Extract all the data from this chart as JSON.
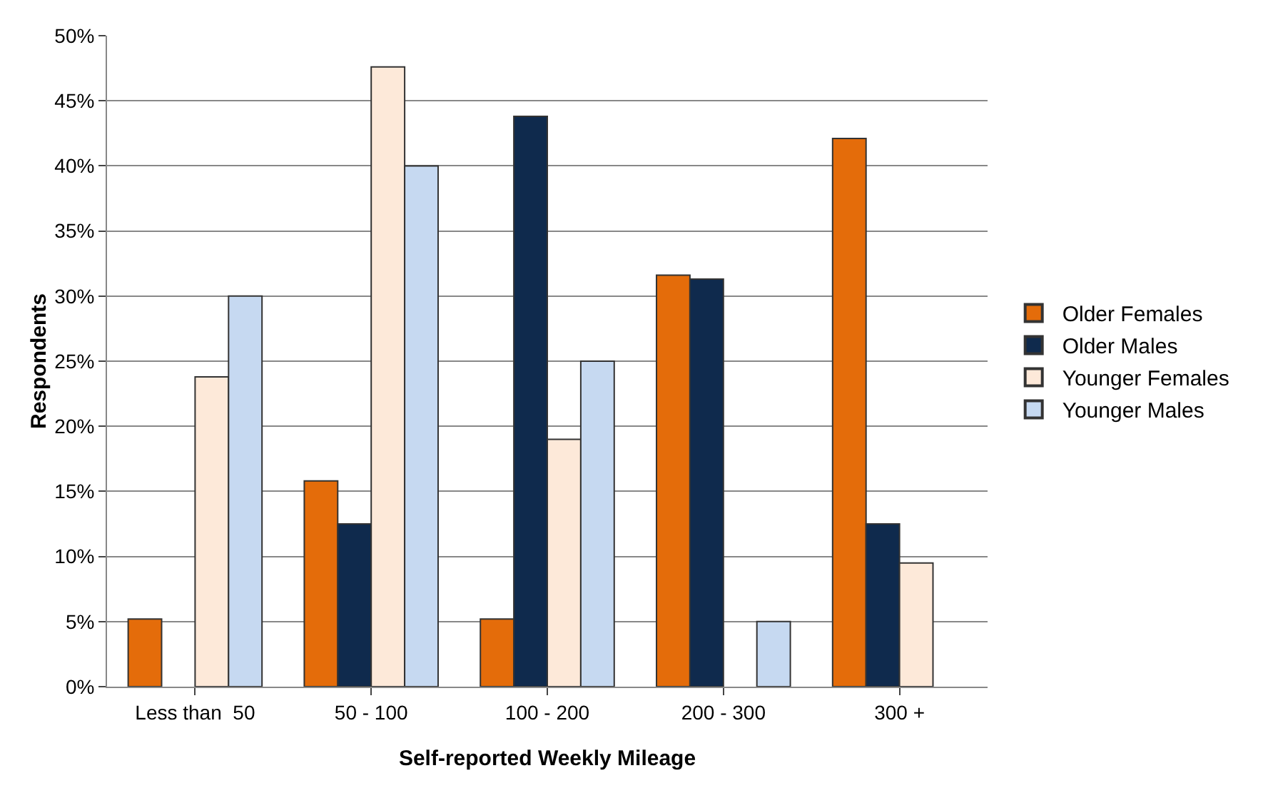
{
  "chart_data": {
    "type": "bar",
    "xlabel": "Self-reported Weekly Mileage",
    "ylabel": "Respondents",
    "categories": [
      "Less than  50",
      "50 - 100",
      "100 - 200",
      "200 - 300",
      "300 +"
    ],
    "series": [
      {
        "name": "Older Females",
        "color": "#e46c0a",
        "values": [
          5.2,
          15.8,
          5.2,
          31.6,
          42.1
        ]
      },
      {
        "name": "Older Males",
        "color": "#0f2a4d",
        "values": [
          0,
          12.5,
          43.8,
          31.3,
          12.5
        ]
      },
      {
        "name": "Younger Females",
        "color": "#fde9d9",
        "values": [
          23.8,
          47.6,
          19.0,
          0,
          9.5
        ]
      },
      {
        "name": "Younger Males",
        "color": "#c6d9f1",
        "values": [
          30,
          40,
          25,
          5,
          0
        ]
      }
    ],
    "ylim": [
      0,
      50
    ],
    "yticks": [
      {
        "value": 0,
        "label": "0%"
      },
      {
        "value": 5,
        "label": "5%"
      },
      {
        "value": 10,
        "label": "10%"
      },
      {
        "value": 15,
        "label": "15%"
      },
      {
        "value": 20,
        "label": "20%"
      },
      {
        "value": 25,
        "label": "25%"
      },
      {
        "value": 30,
        "label": "30%"
      },
      {
        "value": 35,
        "label": "35%"
      },
      {
        "value": 40,
        "label": "40%"
      },
      {
        "value": 45,
        "label": "45%"
      },
      {
        "value": 50,
        "label": "50%"
      }
    ],
    "grid": "y",
    "legend": "right"
  }
}
